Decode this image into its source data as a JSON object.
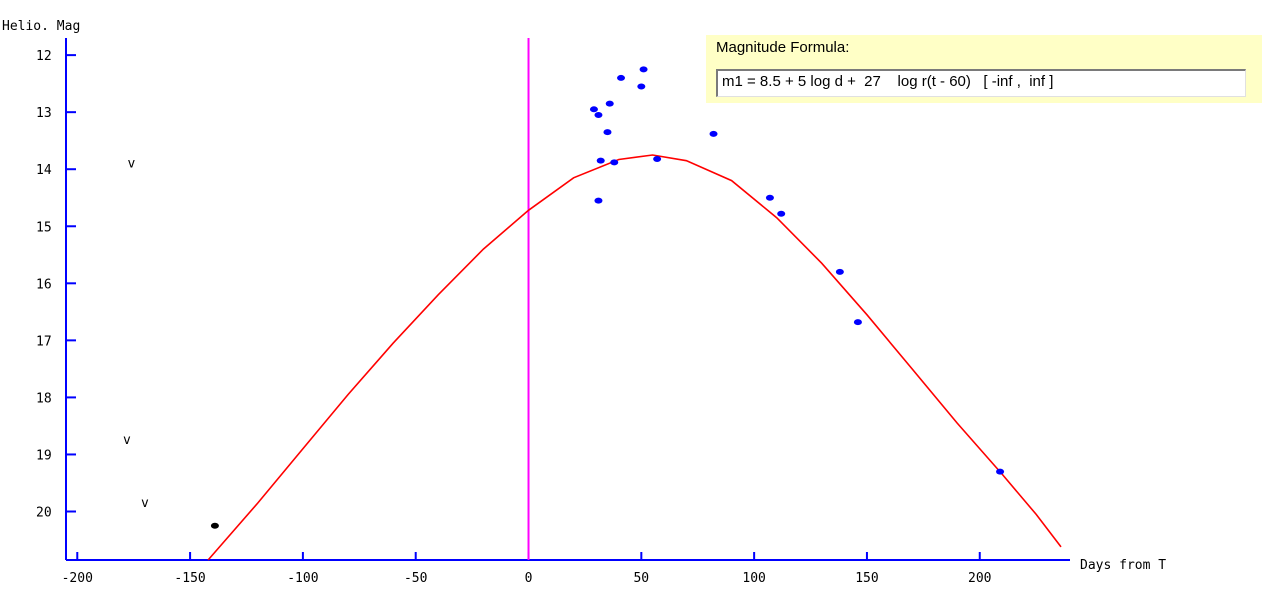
{
  "formula": {
    "title": "Magnitude Formula:",
    "expression": "m1 = 8.5 + 5 log d +  27    log r(t - 60)   [ -inf ,  inf ]"
  },
  "chart_data": {
    "type": "scatter",
    "xlabel": "Days from T",
    "ylabel": "Helio. Mag",
    "xlim": [
      -205,
      240
    ],
    "ylim": [
      20.85,
      11.7
    ],
    "y_inverted": true,
    "x_ticks": [
      -200,
      -150,
      -100,
      -50,
      0,
      50,
      100,
      150,
      200
    ],
    "y_ticks": [
      12,
      13,
      14,
      15,
      16,
      17,
      18,
      19,
      20
    ],
    "perihelion_marker_x": 0,
    "colors": {
      "observations": "#0000ff",
      "early_point": "#000000",
      "fit_curve": "#ff0000",
      "perihelion_line": "#ff00ff"
    },
    "observations": [
      {
        "x": 29,
        "y": 12.95
      },
      {
        "x": 31,
        "y": 13.05
      },
      {
        "x": 36,
        "y": 12.85
      },
      {
        "x": 41,
        "y": 12.4
      },
      {
        "x": 51,
        "y": 12.25
      },
      {
        "x": 50,
        "y": 12.55
      },
      {
        "x": 35,
        "y": 13.35
      },
      {
        "x": 32,
        "y": 13.85
      },
      {
        "x": 38,
        "y": 13.88
      },
      {
        "x": 57,
        "y": 13.82
      },
      {
        "x": 31,
        "y": 14.55
      },
      {
        "x": 82,
        "y": 13.38
      },
      {
        "x": 107,
        "y": 14.5
      },
      {
        "x": 112,
        "y": 14.78
      },
      {
        "x": 138,
        "y": 15.8
      },
      {
        "x": 146,
        "y": 16.68
      },
      {
        "x": 209,
        "y": 19.3
      }
    ],
    "early_observations": [
      {
        "x": -139,
        "y": 20.25
      }
    ],
    "upper_limits": [
      {
        "x": -176,
        "y": 13.9,
        "label": "v"
      },
      {
        "x": -178,
        "y": 18.75,
        "label": "v"
      },
      {
        "x": -170,
        "y": 19.85,
        "label": "v"
      }
    ],
    "fit_curve": [
      {
        "x": -142,
        "y": 20.85
      },
      {
        "x": -120,
        "y": 19.85
      },
      {
        "x": -100,
        "y": 18.9
      },
      {
        "x": -80,
        "y": 17.95
      },
      {
        "x": -60,
        "y": 17.05
      },
      {
        "x": -40,
        "y": 16.2
      },
      {
        "x": -20,
        "y": 15.4
      },
      {
        "x": 0,
        "y": 14.72
      },
      {
        "x": 20,
        "y": 14.15
      },
      {
        "x": 40,
        "y": 13.83
      },
      {
        "x": 55,
        "y": 13.75
      },
      {
        "x": 70,
        "y": 13.85
      },
      {
        "x": 90,
        "y": 14.2
      },
      {
        "x": 110,
        "y": 14.85
      },
      {
        "x": 130,
        "y": 15.65
      },
      {
        "x": 150,
        "y": 16.55
      },
      {
        "x": 170,
        "y": 17.5
      },
      {
        "x": 190,
        "y": 18.45
      },
      {
        "x": 210,
        "y": 19.35
      },
      {
        "x": 225,
        "y": 20.05
      },
      {
        "x": 236,
        "y": 20.62
      }
    ]
  }
}
